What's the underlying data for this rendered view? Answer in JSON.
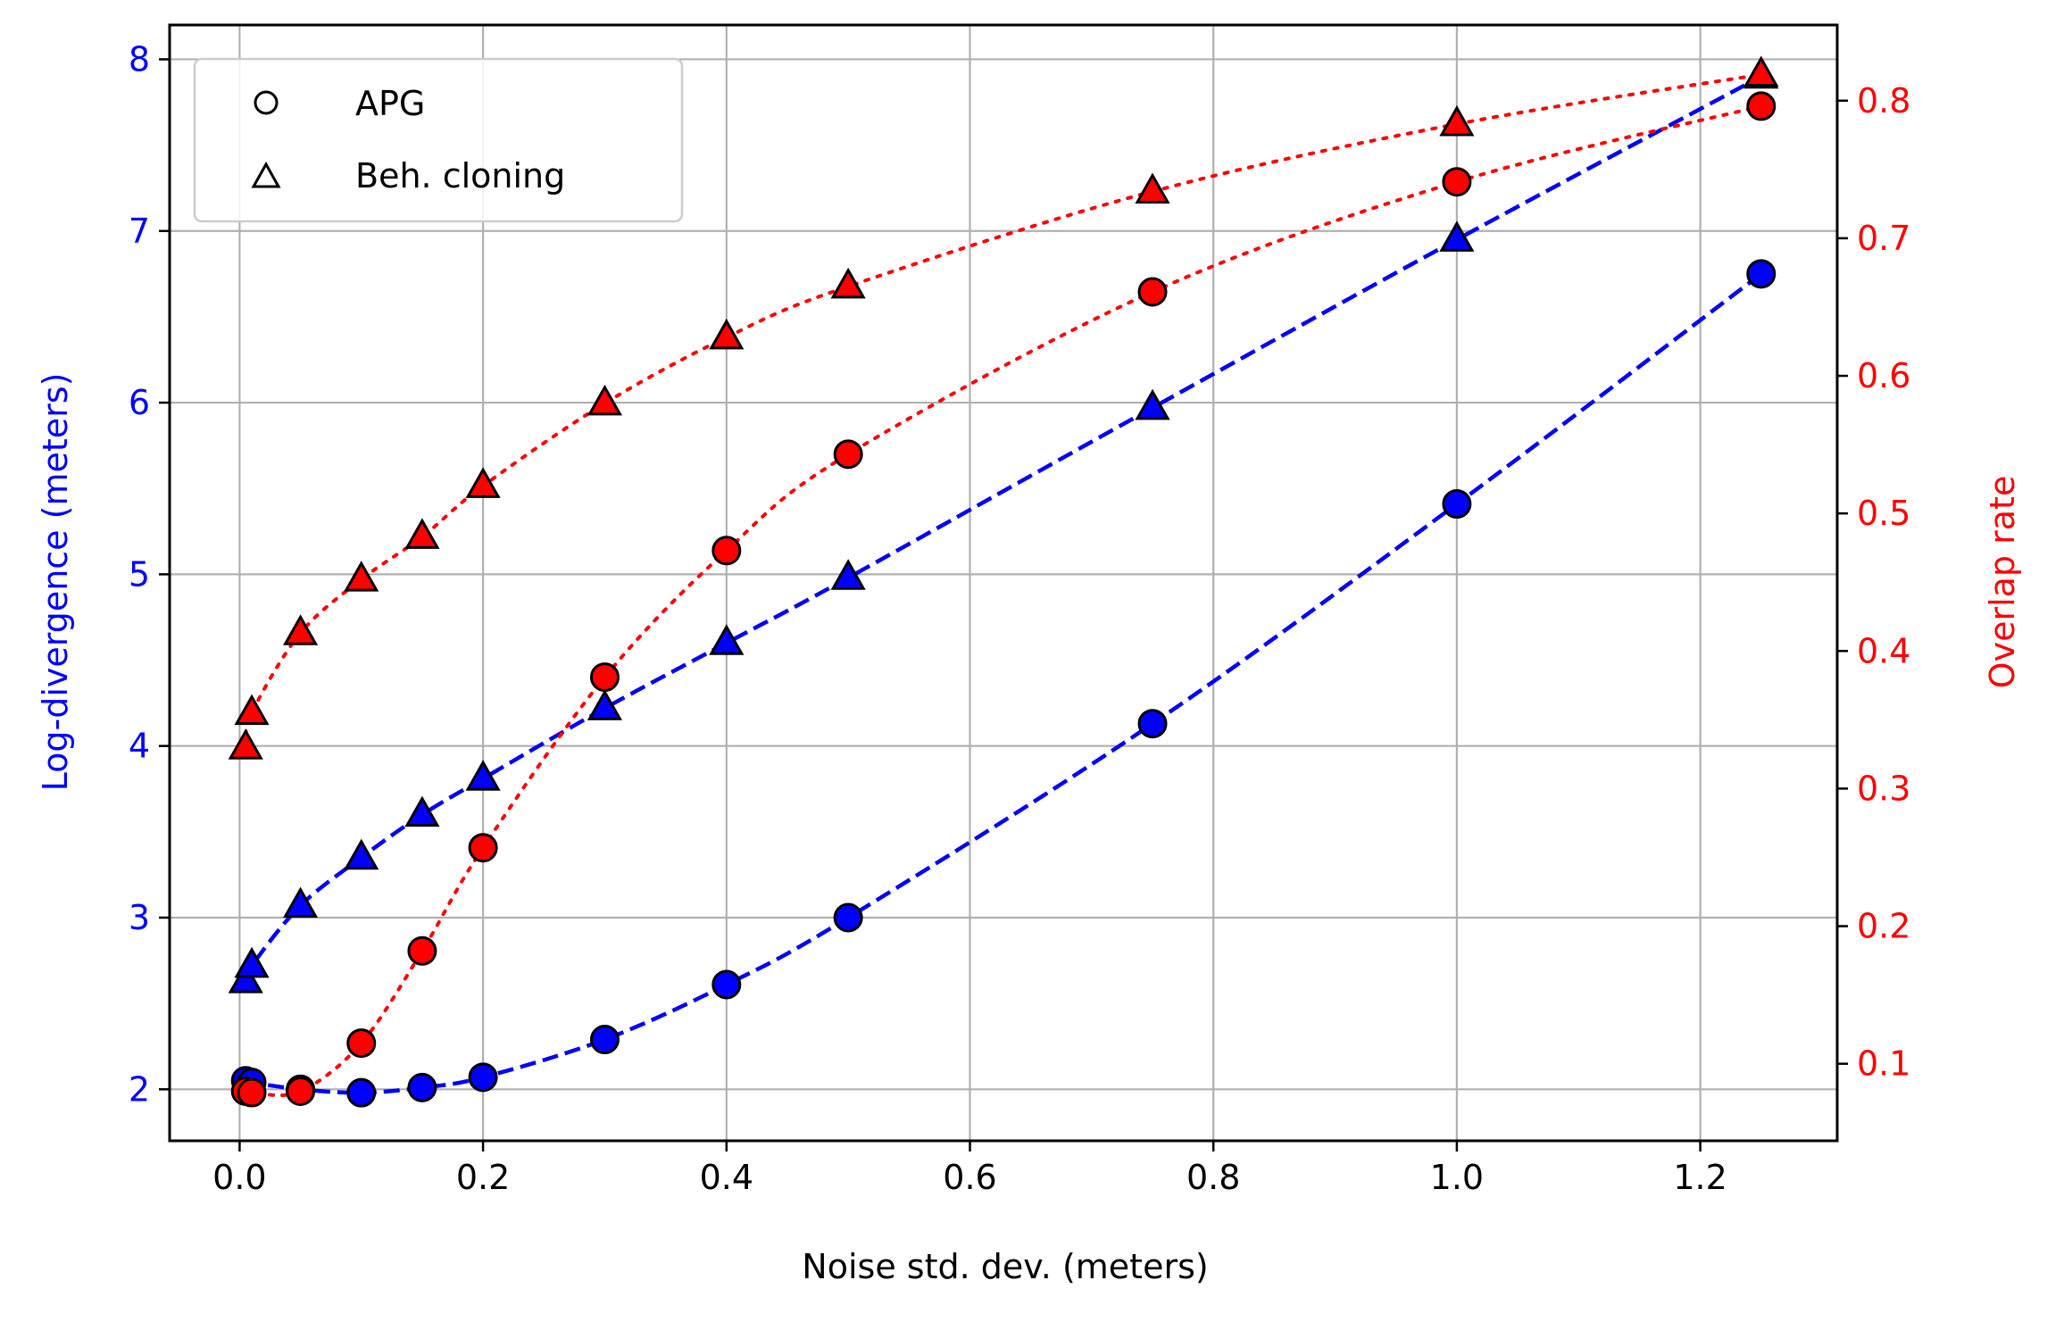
{
  "chart_data": {
    "type": "scatter",
    "xlabel": "Noise std. dev. (meters)",
    "ylabel_left": "Log-divergence (meters)",
    "ylabel_right": "Overlap rate",
    "left_axis_color": "#0000ff",
    "right_axis_color": "#ff0000",
    "xlim": [
      -0.0575,
      1.3125
    ],
    "ylim_left": [
      1.7,
      8.2
    ],
    "ylim_right": [
      0.044,
      0.855
    ],
    "xticks": [
      0.0,
      0.2,
      0.4,
      0.6,
      0.8,
      1.0,
      1.2
    ],
    "xtick_labels": [
      "0.0",
      "0.2",
      "0.4",
      "0.6",
      "0.8",
      "1.0",
      "1.2"
    ],
    "yticks_left": [
      2,
      3,
      4,
      5,
      6,
      7,
      8
    ],
    "ytick_labels_left": [
      "2",
      "3",
      "4",
      "5",
      "6",
      "7",
      "8"
    ],
    "yticks_right": [
      0.1,
      0.2,
      0.3,
      0.4,
      0.5,
      0.6,
      0.7,
      0.8
    ],
    "ytick_labels_right": [
      "0.1",
      "0.2",
      "0.3",
      "0.4",
      "0.5",
      "0.6",
      "0.7",
      "0.8"
    ],
    "grid": true,
    "legend": {
      "position": "top-left",
      "entries": [
        {
          "marker": "circle",
          "label": "APG"
        },
        {
          "marker": "triangle",
          "label": "Beh. cloning"
        }
      ]
    },
    "series": [
      {
        "name": "APG log-divergence",
        "axis": "left",
        "marker": "circle",
        "color": "#0000ff",
        "line_style": "dashed",
        "x": [
          0.005,
          0.01,
          0.05,
          0.1,
          0.15,
          0.2,
          0.3,
          0.4,
          0.5,
          0.75,
          1.0,
          1.25
        ],
        "y": [
          2.05,
          2.04,
          2.0,
          1.98,
          2.01,
          2.07,
          2.29,
          2.61,
          3.0,
          4.13,
          5.41,
          6.75
        ]
      },
      {
        "name": "Beh. cloning log-divergence",
        "axis": "left",
        "marker": "triangle",
        "color": "#0000ff",
        "line_style": "dashed",
        "x": [
          0.005,
          0.01,
          0.05,
          0.1,
          0.15,
          0.2,
          0.3,
          0.4,
          0.5,
          0.75,
          1.0,
          1.25
        ],
        "y": [
          2.63,
          2.72,
          3.07,
          3.35,
          3.6,
          3.81,
          4.22,
          4.6,
          4.98,
          5.97,
          6.95,
          7.9
        ]
      },
      {
        "name": "APG overlap rate",
        "axis": "right",
        "marker": "circle",
        "color": "#ff0000",
        "line_style": "dotted",
        "x": [
          0.005,
          0.01,
          0.05,
          0.1,
          0.15,
          0.2,
          0.3,
          0.4,
          0.5,
          0.75,
          1.0,
          1.25
        ],
        "y": [
          0.08,
          0.079,
          0.08,
          0.115,
          0.182,
          0.257,
          0.381,
          0.473,
          0.543,
          0.661,
          0.741,
          0.796
        ]
      },
      {
        "name": "Beh. cloning overlap rate",
        "axis": "right",
        "marker": "triangle",
        "color": "#ff0000",
        "line_style": "dotted",
        "x": [
          0.005,
          0.01,
          0.05,
          0.1,
          0.15,
          0.2,
          0.3,
          0.4,
          0.5,
          0.75,
          1.0,
          1.25
        ],
        "y": [
          0.33,
          0.355,
          0.413,
          0.452,
          0.483,
          0.52,
          0.58,
          0.628,
          0.665,
          0.734,
          0.783,
          0.819
        ]
      }
    ]
  }
}
